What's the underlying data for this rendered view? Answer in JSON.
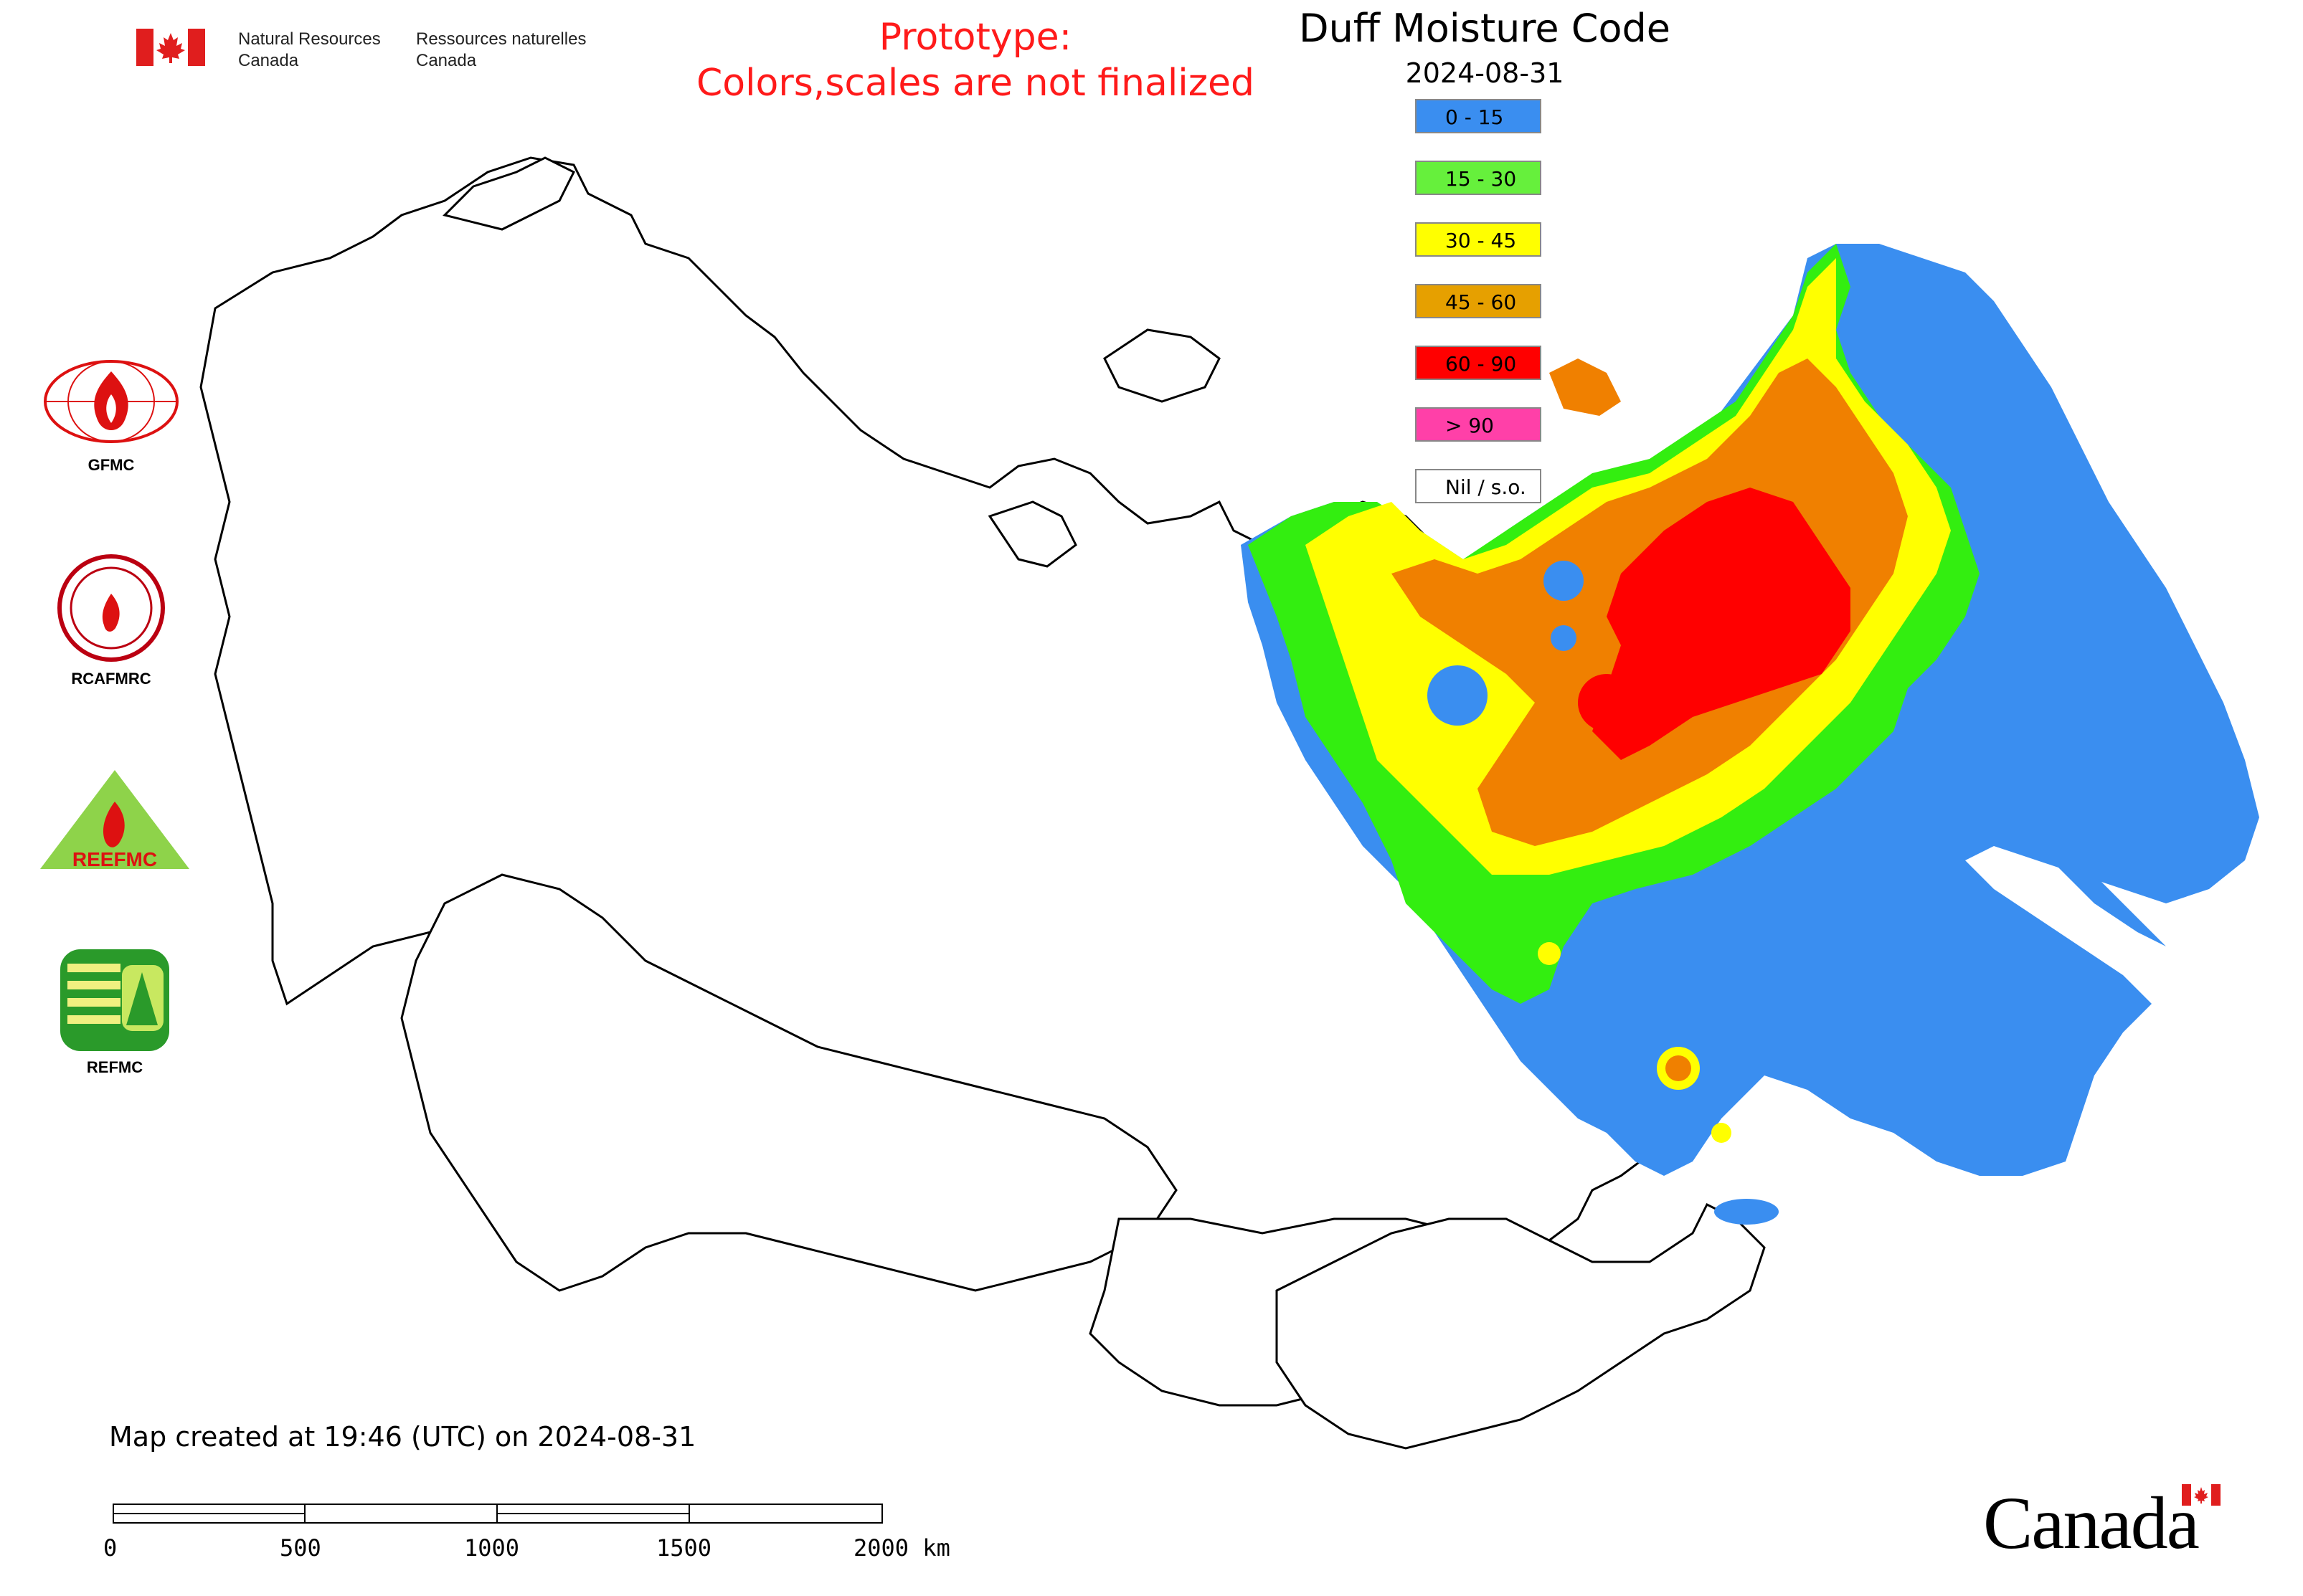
{
  "header": {
    "agency_en_line1": "Natural Resources",
    "agency_en_line2": "Canada",
    "agency_fr_line1": "Ressources naturelles",
    "agency_fr_line2": "Canada",
    "prototype_line1": "Prototype:",
    "prototype_line2": "Colors,scales are not finalized"
  },
  "map": {
    "title": "Duff Moisture Code",
    "date": "2024-08-31",
    "legend": [
      {
        "label": "0 - 15",
        "color": "#3a8ef0"
      },
      {
        "label": "15 - 30",
        "color": "#66f03c"
      },
      {
        "label": "30 - 45",
        "color": "#ffff00"
      },
      {
        "label": "45 - 60",
        "color": "#e6a000"
      },
      {
        "label": "60 - 90",
        "color": "#ff0000"
      },
      {
        "label": "> 90",
        "color": "#ff40a8"
      },
      {
        "label": "Nil / s.o.",
        "color": "#ffffff"
      }
    ]
  },
  "logos": [
    {
      "name": "GFMC",
      "label": "GFMC"
    },
    {
      "name": "RCAFMRC",
      "label": "RCAFMRC"
    },
    {
      "name": "REEFMC",
      "label": "REEFMC"
    },
    {
      "name": "REFMC",
      "label": "REFMC"
    }
  ],
  "footer": {
    "created_text": "Map created at 19:46 (UTC) on 2024-08-31",
    "scale_labels": [
      "0",
      "500",
      "1000",
      "1500",
      "2000 km"
    ],
    "wordmark": "Canada"
  }
}
